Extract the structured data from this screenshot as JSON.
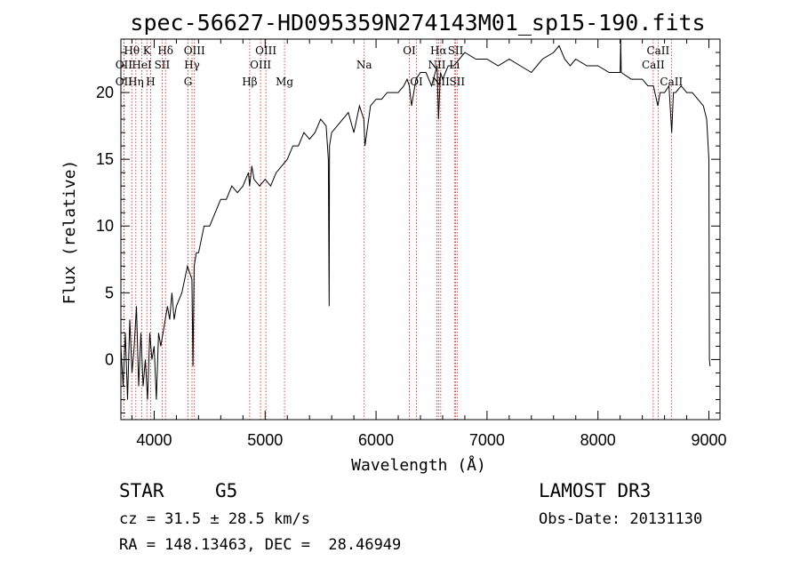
{
  "chart_data": {
    "type": "line",
    "title": "spec-56627-HD095359N274143M01_sp15-190.fits",
    "xlabel": "Wavelength (Å)",
    "ylabel": "Flux (relative)",
    "xlim": [
      3700,
      9100
    ],
    "ylim": [
      -4.5,
      24
    ],
    "x_ticks": [
      4000,
      5000,
      6000,
      7000,
      8000,
      9000
    ],
    "y_ticks": [
      0,
      5,
      10,
      15,
      20
    ],
    "series": [
      {
        "name": "flux",
        "x": [
          3700,
          3720,
          3740,
          3760,
          3780,
          3800,
          3820,
          3840,
          3860,
          3880,
          3900,
          3920,
          3940,
          3960,
          3980,
          4000,
          4020,
          4040,
          4060,
          4080,
          4100,
          4120,
          4140,
          4160,
          4180,
          4200,
          4250,
          4300,
          4340,
          4350,
          4360,
          4380,
          4400,
          4450,
          4500,
          4550,
          4600,
          4650,
          4700,
          4750,
          4800,
          4850,
          4860,
          4880,
          4900,
          4950,
          5000,
          5050,
          5100,
          5150,
          5200,
          5250,
          5300,
          5350,
          5400,
          5450,
          5500,
          5550,
          5570,
          5577,
          5580,
          5600,
          5650,
          5700,
          5750,
          5800,
          5850,
          5890,
          5900,
          5950,
          6000,
          6050,
          6100,
          6150,
          6200,
          6250,
          6280,
          6300,
          6320,
          6360,
          6400,
          6450,
          6500,
          6550,
          6563,
          6580,
          6600,
          6650,
          6700,
          6750,
          6800,
          6900,
          7000,
          7100,
          7200,
          7300,
          7400,
          7500,
          7600,
          7650,
          7700,
          7750,
          7800,
          7900,
          8000,
          8100,
          8200,
          8205,
          8210,
          8300,
          8400,
          8450,
          8500,
          8540,
          8560,
          8600,
          8640,
          8665,
          8680,
          8700,
          8750,
          8800,
          8850,
          8900,
          8950,
          8980,
          9000,
          9005,
          9010
        ],
        "y": [
          1,
          -2,
          2,
          -3,
          3,
          -1,
          1,
          4,
          -2,
          2,
          -2,
          0,
          -3,
          2,
          0,
          1,
          -3,
          2,
          1,
          2,
          3,
          4,
          3,
          5,
          3,
          4,
          5,
          7,
          6,
          -0.5,
          7,
          8,
          8,
          10,
          10,
          11,
          12,
          12,
          13,
          12.5,
          13,
          14,
          13,
          14.5,
          13.5,
          13,
          13.5,
          13,
          14,
          14.5,
          15,
          16,
          16,
          17,
          16.5,
          17,
          18,
          17.5,
          15,
          4,
          16,
          17,
          17.5,
          18,
          18.5,
          17,
          19,
          18,
          16,
          19,
          19.5,
          19.5,
          20,
          20,
          20,
          20.5,
          21,
          20.5,
          19,
          21,
          21.5,
          21.5,
          20.5,
          22,
          18,
          21.5,
          21,
          22,
          22,
          22.5,
          23,
          22.5,
          22.5,
          22,
          22.5,
          22,
          21.5,
          22.5,
          23,
          23.5,
          22.5,
          22,
          22.5,
          22,
          22,
          21.5,
          21.5,
          24,
          21.5,
          21,
          21,
          20.5,
          20.5,
          19,
          20,
          20,
          20.5,
          17,
          20,
          20,
          20.5,
          20,
          20,
          19.5,
          19,
          18,
          15,
          0,
          -0.5
        ]
      }
    ],
    "spectral_lines": [
      {
        "label": "Hθ",
        "wavelength": 3798,
        "row": 1
      },
      {
        "label": "OII",
        "wavelength": 3727,
        "row": 2
      },
      {
        "label": "OII",
        "wavelength": 3727,
        "row": 3
      },
      {
        "label": "HeI",
        "wavelength": 3889,
        "row": 2
      },
      {
        "label": "Hη",
        "wavelength": 3835,
        "row": 3
      },
      {
        "label": "K",
        "wavelength": 3934,
        "row": 1
      },
      {
        "label": "H",
        "wavelength": 3968,
        "row": 3
      },
      {
        "label": "SII",
        "wavelength": 4072,
        "row": 2
      },
      {
        "label": "Hδ",
        "wavelength": 4102,
        "row": 1
      },
      {
        "label": "OIII",
        "wavelength": 4363,
        "row": 1
      },
      {
        "label": "Hγ",
        "wavelength": 4341,
        "row": 2
      },
      {
        "label": "G",
        "wavelength": 4305,
        "row": 3
      },
      {
        "label": "Hβ",
        "wavelength": 4861,
        "row": 3
      },
      {
        "label": "OIII",
        "wavelength": 5007,
        "row": 1
      },
      {
        "label": "OIII",
        "wavelength": 4959,
        "row": 2
      },
      {
        "label": "Mg",
        "wavelength": 5175,
        "row": 3
      },
      {
        "label": "Na",
        "wavelength": 5893,
        "row": 2
      },
      {
        "label": "OI",
        "wavelength": 6300,
        "row": 1
      },
      {
        "label": "OI",
        "wavelength": 6364,
        "row": 3
      },
      {
        "label": "Hα",
        "wavelength": 6563,
        "row": 1
      },
      {
        "label": "SII",
        "wavelength": 6717,
        "row": 1
      },
      {
        "label": "NII",
        "wavelength": 6548,
        "row": 2
      },
      {
        "label": "Li",
        "wavelength": 6707,
        "row": 2
      },
      {
        "label": "NII",
        "wavelength": 6583,
        "row": 3
      },
      {
        "label": "SII",
        "wavelength": 6731,
        "row": 3
      },
      {
        "label": "CaII",
        "wavelength": 8542,
        "row": 1
      },
      {
        "label": "CaII",
        "wavelength": 8498,
        "row": 2
      },
      {
        "label": "CaII",
        "wavelength": 8662,
        "row": 3
      }
    ]
  },
  "info": {
    "object_class": "STAR",
    "subclass": "G5",
    "survey": "LAMOST DR3",
    "redshift_line": "cz = 31.5 ± 28.5 km/s",
    "obs_date_line": "Obs-Date: 20131130",
    "coords_line": "RA = 148.13463, DEC =  28.46949"
  }
}
